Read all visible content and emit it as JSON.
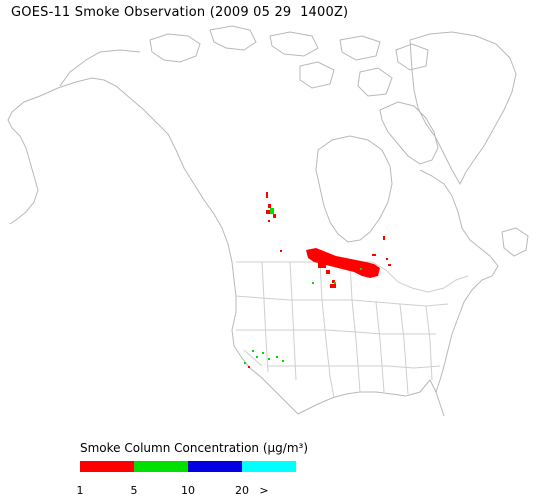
{
  "title": "GOES-11 Smoke Observation (2009 05 29  1400Z)",
  "legend": {
    "title": "Smoke Column Concentration (μg/m³)",
    "colors": [
      "#ff0000",
      "#00e000",
      "#0000e0",
      "#00ffff"
    ],
    "ticks": [
      "1",
      "5",
      "10",
      "20",
      ">"
    ]
  },
  "colors": {
    "coastline": "#b8b8b8",
    "state_lines": "#cfcfcf"
  }
}
